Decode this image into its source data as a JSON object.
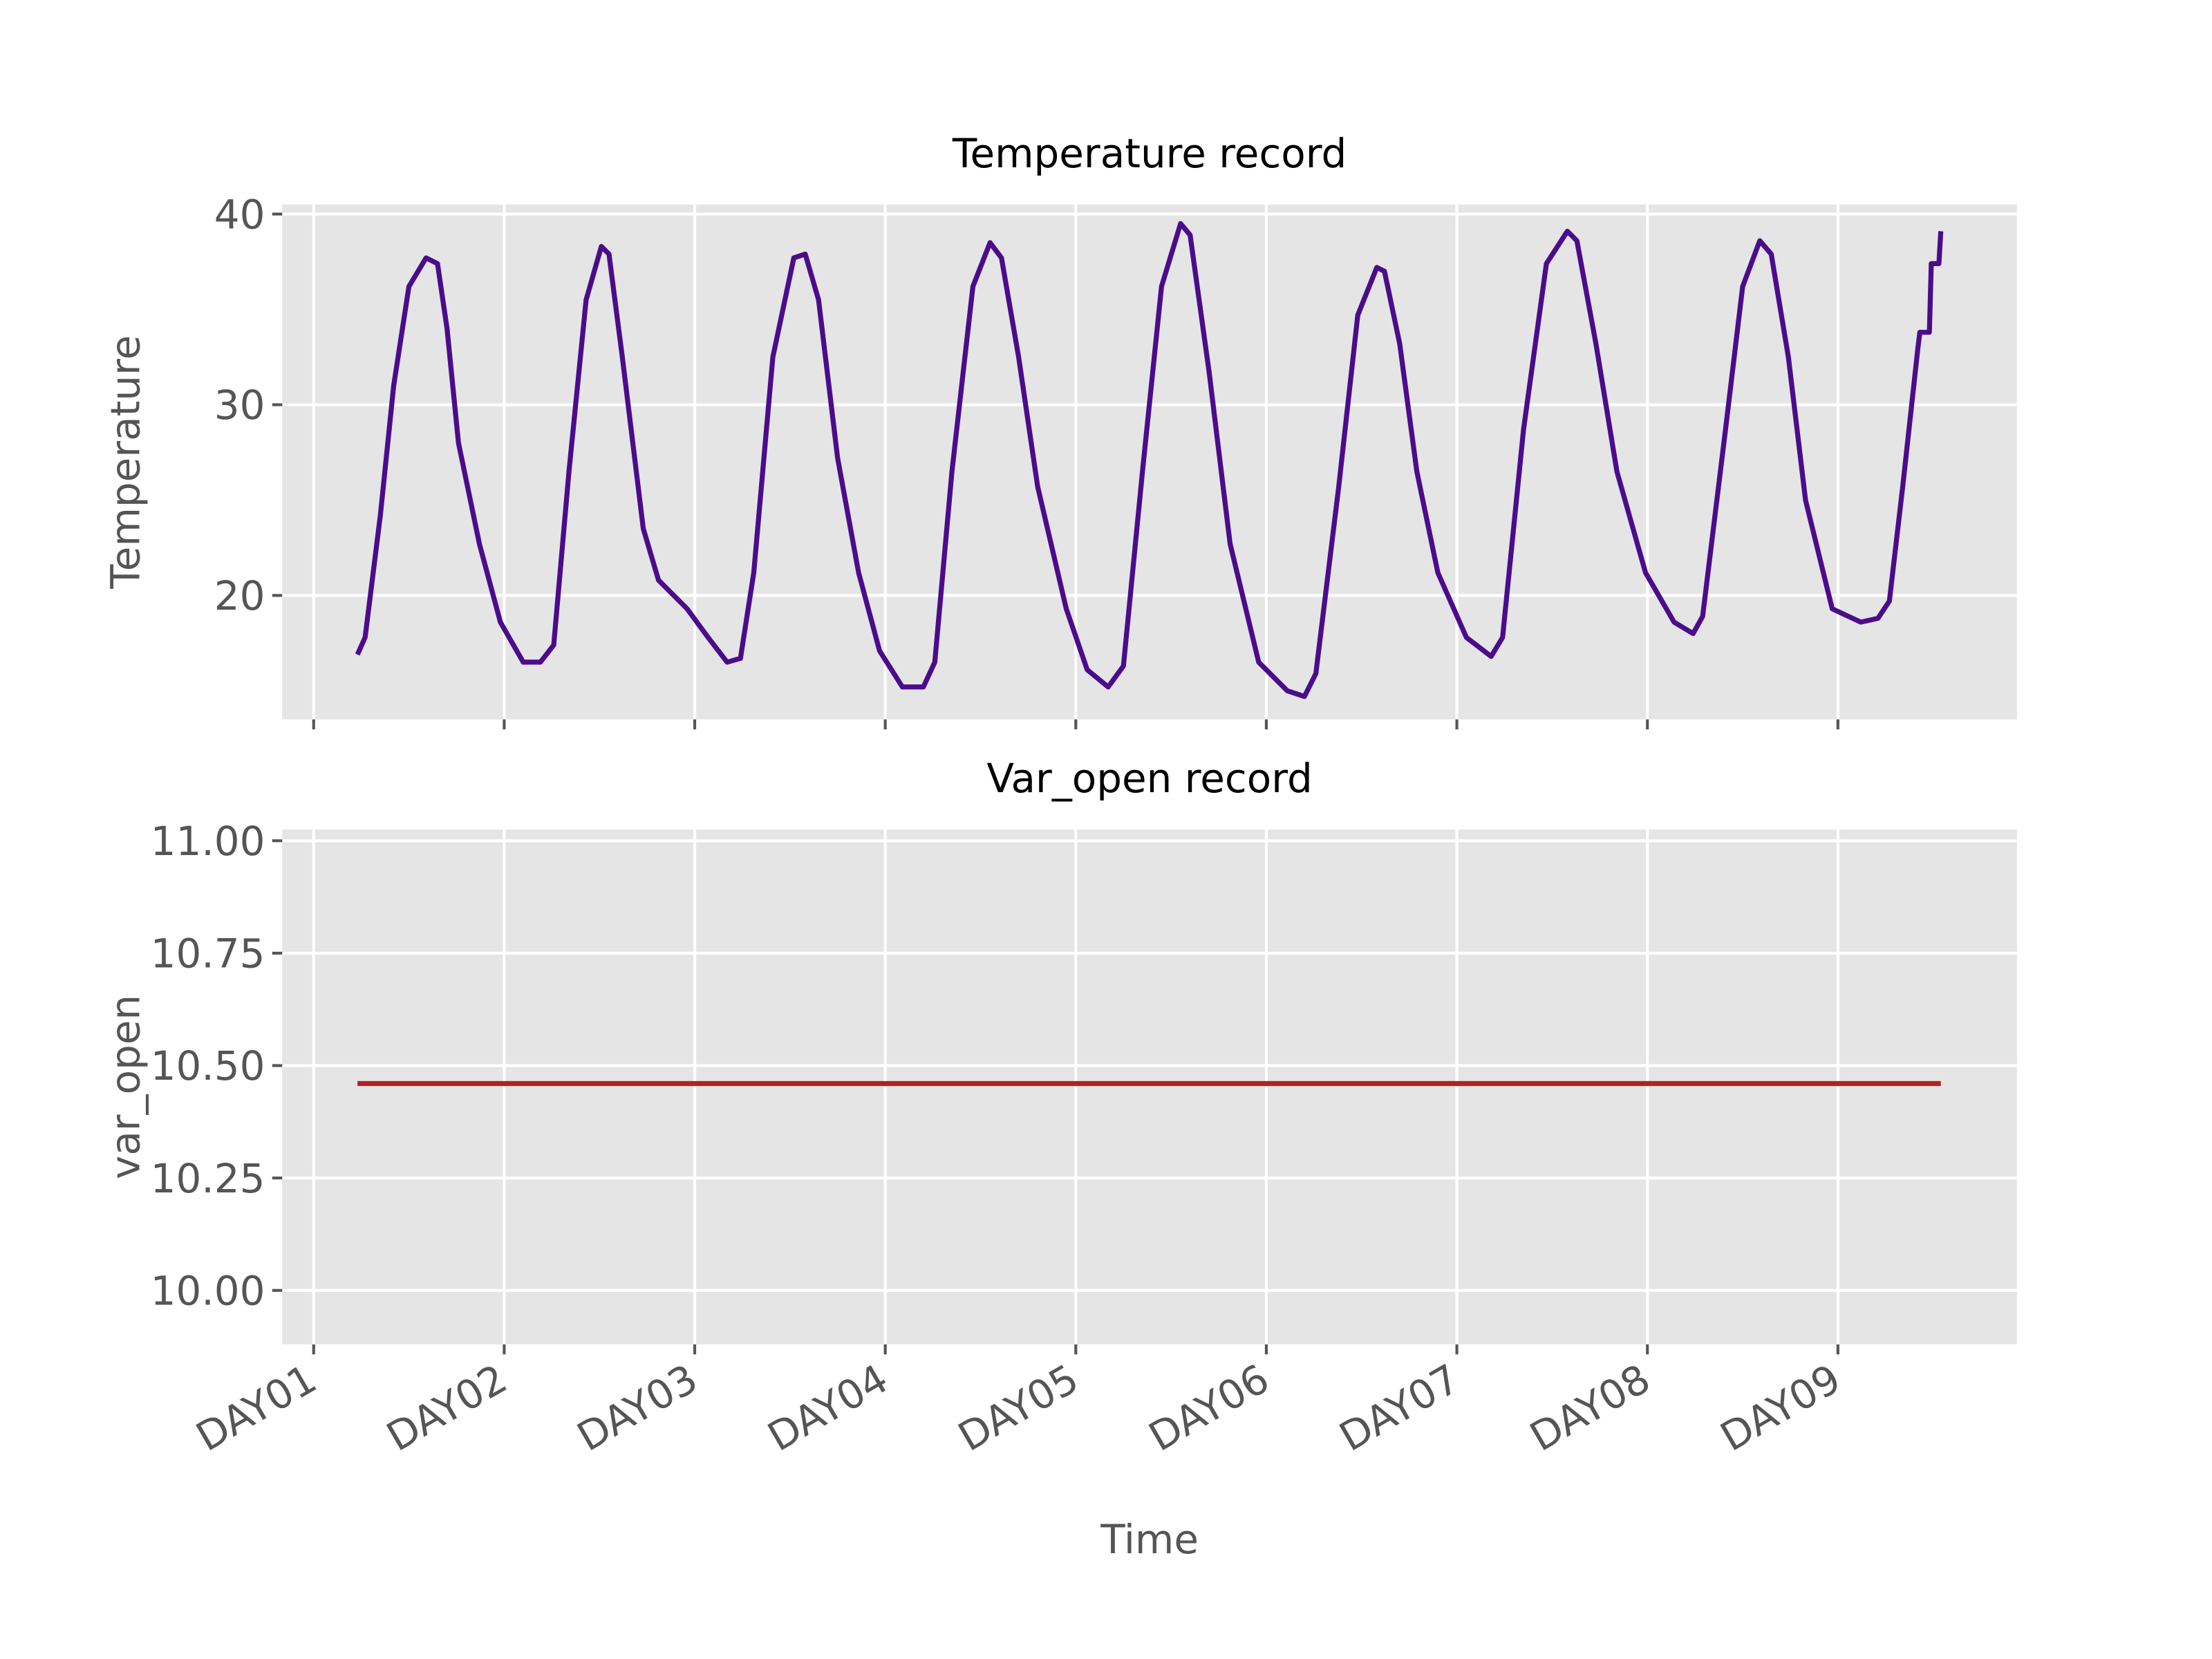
{
  "chart_data": [
    {
      "type": "line",
      "title": "Temperature record",
      "y_label": "Temperature",
      "xlim": [
        0.835,
        9.94
      ],
      "ylim": [
        13.5,
        40.5
      ],
      "yticks": [
        20,
        30,
        40
      ],
      "grid": true,
      "series": [
        {
          "color": "#4b0c8c",
          "x": [
            1.23,
            1.27,
            1.35,
            1.42,
            1.5,
            1.59,
            1.65,
            1.7,
            1.76,
            1.87,
            1.98,
            2.1,
            2.19,
            2.26,
            2.34,
            2.43,
            2.51,
            2.55,
            2.62,
            2.73,
            2.81,
            2.96,
            3.07,
            3.17,
            3.24,
            3.31,
            3.41,
            3.52,
            3.58,
            3.65,
            3.75,
            3.86,
            3.97,
            4.09,
            4.2,
            4.26,
            4.35,
            4.46,
            4.55,
            4.61,
            4.7,
            4.8,
            4.95,
            5.06,
            5.17,
            5.25,
            5.35,
            5.45,
            5.55,
            5.6,
            5.7,
            5.81,
            5.96,
            6.11,
            6.2,
            6.26,
            6.38,
            6.48,
            6.58,
            6.62,
            6.7,
            6.79,
            6.9,
            7.05,
            7.18,
            7.24,
            7.35,
            7.47,
            7.58,
            7.63,
            7.73,
            7.84,
            7.99,
            8.14,
            8.24,
            8.29,
            8.41,
            8.5,
            8.59,
            8.65,
            8.74,
            8.83,
            8.97,
            9.12,
            9.21,
            9.27,
            9.34,
            9.42,
            9.43,
            9.48,
            9.49,
            9.53,
            9.54
          ],
          "values": [
            16.9,
            17.8,
            24.2,
            31,
            36.2,
            37.7,
            37.4,
            34,
            28,
            22.7,
            18.6,
            16.5,
            16.5,
            17.4,
            26.5,
            35.5,
            38.3,
            37.9,
            32.5,
            23.5,
            20.8,
            19.3,
            17.8,
            16.5,
            16.7,
            21.2,
            32.5,
            37.7,
            37.9,
            35.5,
            27.2,
            21.2,
            17.1,
            15.2,
            15.2,
            16.5,
            26.5,
            36.2,
            38.5,
            37.7,
            32.5,
            25.7,
            19.3,
            16.1,
            15.2,
            16.3,
            26.5,
            36.2,
            39.5,
            38.9,
            31.7,
            22.7,
            16.5,
            15,
            14.7,
            15.9,
            25.7,
            34.7,
            37.2,
            37,
            33.2,
            26.5,
            21.2,
            17.8,
            16.8,
            17.8,
            28.7,
            37.4,
            39.1,
            38.6,
            33.2,
            26.5,
            21.2,
            18.6,
            18,
            18.9,
            28.7,
            36.2,
            38.6,
            37.9,
            32.5,
            25,
            19.3,
            18.6,
            18.8,
            19.7,
            25.7,
            33,
            33.8,
            33.8,
            37.4,
            37.4,
            39.1
          ]
        }
      ]
    },
    {
      "type": "line",
      "title": "Var_open record",
      "y_label": "var_open",
      "x_label": "Time",
      "xlim": [
        0.835,
        9.94
      ],
      "ylim": [
        9.88,
        11.025
      ],
      "xticks": [
        {
          "value": 1,
          "label": "DAY01"
        },
        {
          "value": 2,
          "label": "DAY02"
        },
        {
          "value": 3,
          "label": "DAY03"
        },
        {
          "value": 4,
          "label": "DAY04"
        },
        {
          "value": 5,
          "label": "DAY05"
        },
        {
          "value": 6,
          "label": "DAY06"
        },
        {
          "value": 7,
          "label": "DAY07"
        },
        {
          "value": 8,
          "label": "DAY08"
        },
        {
          "value": 9,
          "label": "DAY09"
        }
      ],
      "yticks": [
        {
          "value": 10,
          "label": "10.00"
        },
        10.25,
        {
          "value": 10.5,
          "label": "10.50"
        },
        10.75,
        {
          "value": 11,
          "label": "11.00"
        }
      ],
      "grid": true,
      "series": [
        {
          "color": "#b22222",
          "x": [
            1.23,
            9.54
          ],
          "values": [
            10.46,
            10.46
          ]
        }
      ]
    }
  ]
}
